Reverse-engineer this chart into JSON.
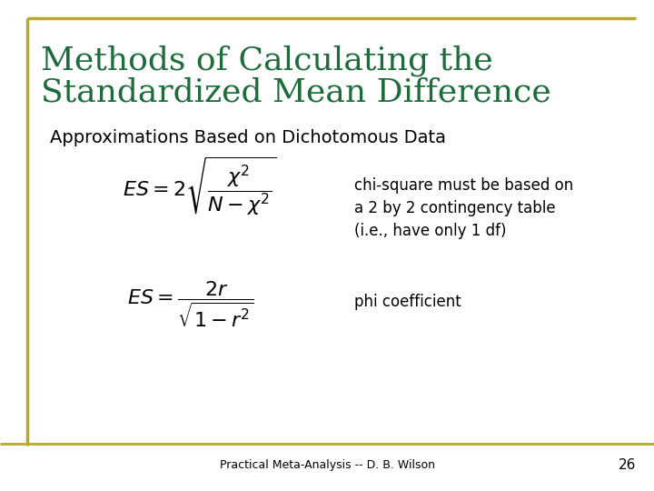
{
  "title_line1": "Methods of Calculating the",
  "title_line2": "Standardized Mean Difference",
  "title_color": "#1E6B3C",
  "subtitle": "Approximations Based on Dichotomous Data",
  "subtitle_color": "#000000",
  "annotation1_line1": "chi-square must be based on",
  "annotation1_line2": "a 2 by 2 contingency table",
  "annotation1_line3": "(i.e., have only 1 df)",
  "annotation2": "phi coefficient",
  "footer": "Practical Meta-Analysis -- D. B. Wilson",
  "page_number": "26",
  "background_color": "#FFFFFF",
  "border_color": "#B8A830",
  "text_color": "#000000",
  "title_fontsize": 26,
  "subtitle_fontsize": 14,
  "formula_fontsize": 16,
  "annotation_fontsize": 12,
  "footer_fontsize": 9
}
